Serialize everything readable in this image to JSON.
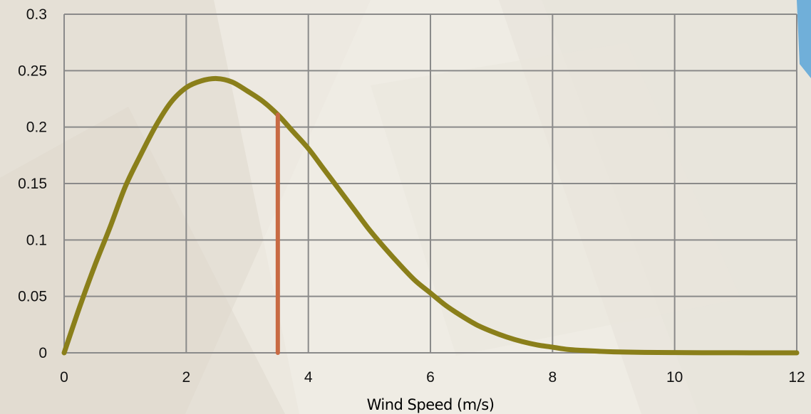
{
  "chart_data": {
    "type": "line",
    "title": "",
    "xlabel": "Wind Speed (m/s)",
    "ylabel": "",
    "xlim": [
      0,
      12
    ],
    "ylim": [
      0,
      0.3
    ],
    "x_ticks": [
      "0",
      "2",
      "4",
      "6",
      "8",
      "10",
      "12"
    ],
    "y_ticks": [
      "0",
      "0.05",
      "0.1",
      "0.15",
      "0.2",
      "0.25",
      "0.3"
    ],
    "grid": true,
    "legend": "none",
    "series": [
      {
        "color": "#8a7f1a",
        "x": [
          0,
          0.25,
          0.5,
          0.75,
          1,
          1.25,
          1.5,
          1.75,
          2,
          2.25,
          2.5,
          2.75,
          3,
          3.25,
          3.5,
          3.75,
          4,
          4.25,
          4.5,
          4.75,
          5,
          5.25,
          5.5,
          5.75,
          6,
          6.25,
          6.5,
          6.75,
          7,
          7.25,
          7.5,
          7.75,
          8,
          8.25,
          8.5,
          8.75,
          9,
          9.5,
          10,
          10.5,
          11,
          11.5,
          12
        ],
        "y": [
          0,
          0.04,
          0.077,
          0.111,
          0.147,
          0.175,
          0.201,
          0.222,
          0.235,
          0.241,
          0.243,
          0.24,
          0.232,
          0.223,
          0.211,
          0.196,
          0.181,
          0.163,
          0.145,
          0.127,
          0.109,
          0.093,
          0.078,
          0.064,
          0.053,
          0.042,
          0.033,
          0.025,
          0.019,
          0.014,
          0.01,
          0.007,
          0.005,
          0.003,
          0.0021,
          0.0014,
          0.0009,
          0.0004,
          0.0002,
          0.0001,
          4e-05,
          2e-05,
          1e-05
        ]
      }
    ],
    "annotations": [
      {
        "type": "vertical-line",
        "x": 3.5,
        "y_from": 0,
        "y_to": 0.211,
        "color": "#c86a43"
      }
    ]
  }
}
